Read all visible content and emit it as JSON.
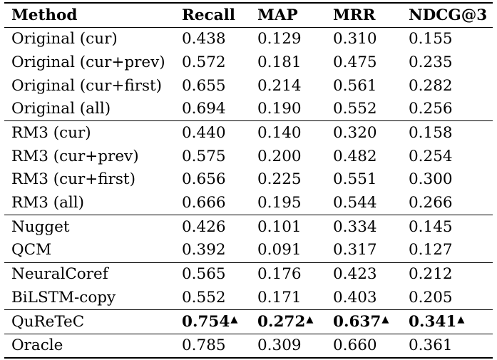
{
  "table": {
    "headers": [
      "Method",
      "Recall",
      "MAP",
      "MRR",
      "NDCG@3"
    ],
    "rows": [
      {
        "method": "Original (cur)",
        "recall": "0.438",
        "map": "0.129",
        "mrr": "0.310",
        "ndcg": "0.155"
      },
      {
        "method": "Original (cur+prev)",
        "recall": "0.572",
        "map": "0.181",
        "mrr": "0.475",
        "ndcg": "0.235"
      },
      {
        "method": "Original (cur+first)",
        "recall": "0.655",
        "map": "0.214",
        "mrr": "0.561",
        "ndcg": "0.282"
      },
      {
        "method": "Original (all)",
        "recall": "0.694",
        "map": "0.190",
        "mrr": "0.552",
        "ndcg": "0.256"
      },
      {
        "method": "RM3 (cur)",
        "recall": "0.440",
        "map": "0.140",
        "mrr": "0.320",
        "ndcg": "0.158"
      },
      {
        "method": "RM3 (cur+prev)",
        "recall": "0.575",
        "map": "0.200",
        "mrr": "0.482",
        "ndcg": "0.254"
      },
      {
        "method": "RM3 (cur+first)",
        "recall": "0.656",
        "map": "0.225",
        "mrr": "0.551",
        "ndcg": "0.300"
      },
      {
        "method": "RM3 (all)",
        "recall": "0.666",
        "map": "0.195",
        "mrr": "0.544",
        "ndcg": "0.266"
      },
      {
        "method": "Nugget",
        "recall": "0.426",
        "map": "0.101",
        "mrr": "0.334",
        "ndcg": "0.145"
      },
      {
        "method": "QCM",
        "recall": "0.392",
        "map": "0.091",
        "mrr": "0.317",
        "ndcg": "0.127"
      },
      {
        "method": "NeuralCoref",
        "recall": "0.565",
        "map": "0.176",
        "mrr": "0.423",
        "ndcg": "0.212"
      },
      {
        "method": "BiLSTM-copy",
        "recall": "0.552",
        "map": "0.171",
        "mrr": "0.403",
        "ndcg": "0.205"
      },
      {
        "method": "QuReTeC",
        "recall": "0.754",
        "map": "0.272",
        "mrr": "0.637",
        "ndcg": "0.341"
      },
      {
        "method": "Oracle",
        "recall": "0.785",
        "map": "0.309",
        "mrr": "0.660",
        "ndcg": "0.361"
      }
    ],
    "significance_marker": "▲"
  }
}
